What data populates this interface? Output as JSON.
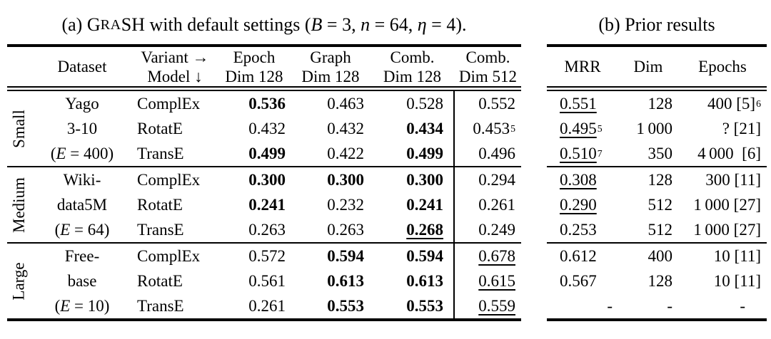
{
  "title_a": {
    "pre": "(a) G",
    "smallcaps": "RA",
    "name_rest": "SH",
    "mid": " with default settings (",
    "m_v1": "B",
    "m_e1": " = 3, ",
    "m_v2": "n",
    "m_e2": " = 64, ",
    "m_v3": "η",
    "m_e3": " = 4",
    "post": ")."
  },
  "table_a": {
    "header": {
      "dataset": "Dataset",
      "variant": "Variant →",
      "model": "Model ↓",
      "cols": [
        {
          "top": "Epoch",
          "bot": "Dim 128"
        },
        {
          "top": "Graph",
          "bot": "Dim 128"
        },
        {
          "top": "Comb.",
          "bot": "Dim 128"
        },
        {
          "top": "Comb.",
          "bot": "Dim 512"
        }
      ]
    },
    "groups": [
      {
        "label": "Small",
        "dataset": [
          "Yago",
          "3-10"
        ],
        "e_pre": "(",
        "e_var": "E",
        "e_post": " = 400)",
        "rows": [
          {
            "model": "ComplEx",
            "cells": [
              {
                "t": "0.536",
                "b": true
              },
              {
                "t": "0.463"
              },
              {
                "t": "0.528"
              },
              {
                "t": "0.552"
              }
            ]
          },
          {
            "model": "RotatE",
            "cells": [
              {
                "t": "0.432"
              },
              {
                "t": "0.432"
              },
              {
                "t": "0.434",
                "b": true
              },
              {
                "t": "0.453",
                "s": "5"
              }
            ]
          },
          {
            "model": "TransE",
            "cells": [
              {
                "t": "0.499",
                "b": true
              },
              {
                "t": "0.422"
              },
              {
                "t": "0.499",
                "b": true
              },
              {
                "t": "0.496"
              }
            ]
          }
        ]
      },
      {
        "label": "Medium",
        "dataset": [
          "Wiki-",
          "data5M"
        ],
        "e_pre": "(",
        "e_var": "E",
        "e_post": " = 64)",
        "rows": [
          {
            "model": "ComplEx",
            "cells": [
              {
                "t": "0.300",
                "b": true
              },
              {
                "t": "0.300",
                "b": true
              },
              {
                "t": "0.300",
                "b": true
              },
              {
                "t": "0.294"
              }
            ]
          },
          {
            "model": "RotatE",
            "cells": [
              {
                "t": "0.241",
                "b": true
              },
              {
                "t": "0.232"
              },
              {
                "t": "0.241",
                "b": true
              },
              {
                "t": "0.261"
              }
            ]
          },
          {
            "model": "TransE",
            "cells": [
              {
                "t": "0.263"
              },
              {
                "t": "0.263"
              },
              {
                "t": "0.268",
                "b": true,
                "u": true
              },
              {
                "t": "0.249"
              }
            ]
          }
        ]
      },
      {
        "label": "Large",
        "dataset": [
          "Free-",
          "base"
        ],
        "e_pre": "(",
        "e_var": "E",
        "e_post": " = 10)",
        "rows": [
          {
            "model": "ComplEx",
            "cells": [
              {
                "t": "0.572"
              },
              {
                "t": "0.594",
                "b": true
              },
              {
                "t": "0.594",
                "b": true
              },
              {
                "t": "0.678",
                "u": true
              }
            ]
          },
          {
            "model": "RotatE",
            "cells": [
              {
                "t": "0.561"
              },
              {
                "t": "0.613",
                "b": true
              },
              {
                "t": "0.613",
                "b": true
              },
              {
                "t": "0.615",
                "u": true
              }
            ]
          },
          {
            "model": "TransE",
            "cells": [
              {
                "t": "0.261"
              },
              {
                "t": "0.553",
                "b": true
              },
              {
                "t": "0.553",
                "b": true
              },
              {
                "t": "0.559",
                "u": true
              }
            ]
          }
        ]
      }
    ]
  },
  "table_b": {
    "title": "(b) Prior results",
    "header": {
      "mrr": "MRR",
      "dim": "Dim",
      "epochs": "Epochs"
    },
    "groups": [
      {
        "rows": [
          {
            "mrr": {
              "t": "0.551",
              "u": true
            },
            "dim": {
              "t": "128"
            },
            "epochs": {
              "t": "400 [5]",
              "s": "6"
            }
          },
          {
            "mrr": {
              "t": "0.495",
              "u": true,
              "s": "5"
            },
            "dim": {
              "t": "1 000"
            },
            "epochs": {
              "t": "? [21]"
            }
          },
          {
            "mrr": {
              "t": "0.510",
              "u": true,
              "s": "7"
            },
            "dim": {
              "t": "350"
            },
            "epochs": {
              "t": "4 000  [6]"
            }
          }
        ]
      },
      {
        "rows": [
          {
            "mrr": {
              "t": "0.308",
              "u": true
            },
            "dim": {
              "t": "128"
            },
            "epochs": {
              "t": "300 [11]"
            }
          },
          {
            "mrr": {
              "t": "0.290",
              "u": true
            },
            "dim": {
              "t": "512"
            },
            "epochs": {
              "t": "1 000 [27]"
            }
          },
          {
            "mrr": {
              "t": "0.253"
            },
            "dim": {
              "t": "512"
            },
            "epochs": {
              "t": "1 000 [27]"
            }
          }
        ]
      },
      {
        "rows": [
          {
            "mrr": {
              "t": "0.612"
            },
            "dim": {
              "t": "400"
            },
            "epochs": {
              "t": "10 [11]"
            }
          },
          {
            "mrr": {
              "t": "0.567"
            },
            "dim": {
              "t": "128"
            },
            "epochs": {
              "t": "10 [11]"
            }
          },
          {
            "mrr": {
              "t": "-"
            },
            "dim": {
              "t": "-"
            },
            "epochs": {
              "t": "-"
            }
          }
        ]
      }
    ]
  }
}
